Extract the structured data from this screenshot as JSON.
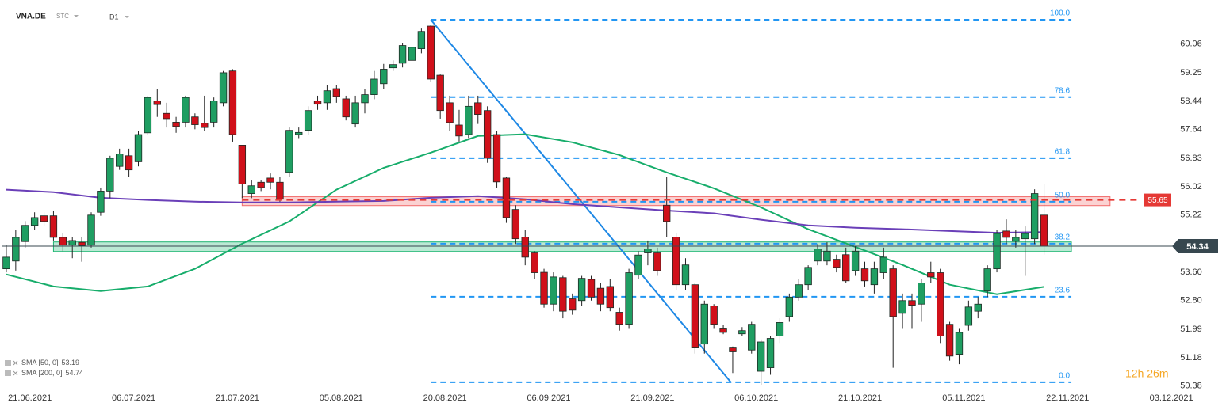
{
  "header": {
    "symbol": "VNA.DE",
    "kind": "STC",
    "timeframe": "D1"
  },
  "chart_data": {
    "type": "candlestick",
    "open": [
      53.7,
      53.92,
      54.47,
      54.93,
      55.2,
      55.2,
      54.59,
      54.37,
      54.45,
      54.37,
      55.3,
      55.9,
      56.6,
      56.9,
      56.73,
      57.55,
      58.45,
      58.1,
      57.85,
      57.85,
      58.0,
      57.82,
      57.85,
      58.4,
      59.3,
      57.2,
      55.83,
      56.15,
      56.27,
      56.15,
      56.43,
      57.5,
      57.62,
      58.45,
      58.4,
      58.8,
      58.51,
      57.8,
      58.4,
      58.63,
      58.94,
      59.39,
      59.52,
      59.6,
      59.93,
      60.57,
      59.18,
      58.4,
      57.77,
      57.5,
      58.4,
      58.18,
      57.5,
      56.27,
      55.38,
      54.6,
      54.15,
      53.6,
      52.7,
      53.45,
      52.85,
      52.8,
      53.4,
      53.15,
      53.2,
      52.47,
      52.13,
      53.52,
      54.15,
      54.15,
      55.5,
      54.6,
      53.25,
      53.25,
      51.57,
      52.65,
      52.0,
      51.46,
      51.86,
      51.4,
      50.8,
      50.9,
      51.8,
      52.35,
      52.9,
      53.25,
      53.92,
      53.92,
      53.97,
      54.1,
      53.65,
      53.7,
      53.25,
      53.59,
      53.7,
      52.44,
      52.8,
      52.7,
      53.59,
      53.59,
      52.13,
      51.28,
      52.1,
      52.5,
      53.07,
      53.7,
      54.77,
      54.48,
      54.55,
      54.55,
      55.22
    ],
    "high": [
      54.37,
      54.8,
      55.05,
      55.3,
      55.3,
      55.35,
      54.7,
      54.6,
      54.6,
      55.3,
      56.0,
      56.9,
      57.1,
      57.1,
      57.6,
      58.6,
      58.8,
      58.4,
      58.0,
      58.6,
      58.1,
      58.6,
      58.55,
      59.3,
      59.35,
      57.2,
      56.2,
      56.2,
      56.4,
      56.3,
      57.7,
      57.7,
      58.3,
      58.6,
      58.9,
      58.9,
      58.6,
      58.6,
      58.8,
      59.3,
      59.5,
      59.6,
      60.1,
      60.0,
      60.5,
      60.6,
      59.2,
      58.6,
      58.2,
      58.6,
      58.6,
      58.3,
      57.6,
      56.3,
      55.5,
      54.8,
      54.2,
      53.7,
      53.6,
      53.5,
      53.0,
      53.5,
      53.5,
      53.3,
      53.4,
      52.6,
      53.7,
      54.2,
      54.5,
      54.3,
      56.3,
      54.7,
      54.0,
      53.3,
      52.8,
      52.7,
      52.1,
      51.5,
      52.05,
      52.2,
      51.7,
      51.8,
      52.3,
      53.0,
      53.4,
      53.8,
      54.4,
      54.45,
      54.1,
      54.3,
      54.35,
      53.9,
      53.9,
      54.3,
      53.8,
      53.0,
      53.0,
      53.4,
      53.9,
      53.7,
      52.2,
      52.0,
      52.8,
      52.9,
      53.8,
      54.8,
      55.1,
      54.8,
      54.9,
      55.95,
      56.1
    ],
    "low": [
      53.6,
      53.65,
      54.3,
      54.8,
      54.9,
      54.5,
      54.2,
      54.0,
      53.9,
      54.3,
      55.2,
      55.7,
      56.5,
      56.3,
      56.6,
      57.5,
      58.0,
      57.7,
      57.55,
      57.7,
      57.65,
      57.6,
      57.7,
      58.3,
      57.3,
      55.7,
      55.7,
      55.9,
      55.95,
      55.6,
      56.3,
      57.4,
      57.5,
      58.2,
      58.2,
      58.4,
      57.9,
      57.7,
      58.1,
      58.5,
      58.8,
      59.3,
      59.4,
      59.3,
      59.8,
      59.0,
      57.95,
      57.6,
      57.3,
      57.4,
      57.8,
      56.7,
      56.0,
      55.0,
      54.4,
      53.8,
      53.4,
      52.6,
      52.5,
      52.3,
      52.4,
      52.65,
      52.8,
      52.5,
      52.5,
      51.95,
      52.0,
      53.4,
      53.8,
      53.5,
      54.6,
      53.1,
      53.1,
      51.3,
      51.3,
      52.0,
      51.85,
      50.75,
      51.8,
      51.3,
      50.4,
      50.7,
      51.6,
      52.2,
      52.8,
      53.1,
      53.8,
      53.8,
      53.6,
      53.3,
      53.5,
      53.2,
      53.0,
      53.4,
      50.9,
      52.0,
      52.0,
      52.2,
      53.3,
      51.6,
      51.1,
      51.0,
      51.95,
      52.3,
      52.9,
      53.6,
      54.4,
      54.3,
      53.5,
      54.4,
      54.1
    ],
    "close": [
      54.03,
      54.59,
      54.93,
      55.15,
      55.04,
      54.59,
      54.37,
      54.5,
      54.36,
      55.22,
      55.9,
      56.83,
      56.95,
      56.5,
      57.5,
      58.55,
      58.35,
      57.95,
      57.73,
      58.55,
      57.78,
      57.7,
      58.45,
      59.25,
      57.5,
      56.1,
      56.05,
      56.0,
      56.15,
      55.67,
      57.62,
      57.56,
      58.18,
      58.36,
      58.74,
      58.58,
      58.0,
      58.4,
      58.63,
      59.07,
      59.35,
      59.48,
      60.02,
      59.97,
      60.42,
      59.07,
      58.18,
      57.84,
      57.46,
      58.3,
      58.07,
      56.83,
      56.16,
      55.15,
      54.55,
      54.03,
      53.59,
      52.7,
      53.47,
      52.5,
      52.53,
      53.43,
      52.9,
      52.7,
      52.6,
      52.13,
      53.59,
      54.09,
      54.26,
      53.65,
      55.04,
      53.25,
      53.81,
      51.46,
      52.7,
      52.13,
      51.9,
      51.35,
      51.95,
      52.13,
      51.63,
      51.73,
      52.18,
      52.9,
      53.25,
      53.74,
      54.26,
      54.2,
      53.74,
      53.36,
      54.2,
      53.36,
      53.7,
      54.03,
      52.35,
      52.8,
      52.67,
      53.3,
      53.47,
      51.8,
      51.23,
      51.9,
      52.62,
      52.7,
      53.7,
      54.7,
      54.59,
      54.59,
      54.7,
      55.83,
      54.34
    ],
    "up_color": "#1f9e62",
    "down_color": "#d0101a",
    "series": [
      {
        "name": "SMA [50, 0]",
        "legend_value": 53.19,
        "color": "#17ad6b",
        "x": [
          0,
          5,
          10,
          15,
          20,
          25,
          30,
          35,
          40,
          45,
          50,
          55,
          60,
          65,
          70,
          75,
          80,
          85,
          90,
          95,
          100,
          105,
          110
        ],
        "values": [
          53.54,
          53.2,
          53.07,
          53.2,
          53.7,
          54.41,
          55.04,
          55.94,
          56.56,
          56.99,
          57.46,
          57.51,
          57.28,
          56.92,
          56.43,
          55.98,
          55.44,
          54.82,
          54.32,
          53.81,
          53.25,
          52.98,
          53.19
        ]
      },
      {
        "name": "SMA [200, 0]",
        "legend_value": 54.74,
        "color": "#6a3fb8",
        "x": [
          0,
          5,
          10,
          15,
          20,
          25,
          30,
          35,
          40,
          45,
          50,
          55,
          60,
          65,
          70,
          75,
          80,
          85,
          90,
          95,
          100,
          105,
          110
        ],
        "values": [
          55.94,
          55.87,
          55.71,
          55.65,
          55.6,
          55.58,
          55.58,
          55.6,
          55.62,
          55.71,
          55.76,
          55.67,
          55.53,
          55.44,
          55.35,
          55.27,
          55.09,
          54.93,
          54.86,
          54.82,
          54.77,
          54.72,
          54.74
        ]
      }
    ],
    "fib": {
      "color": "#2196f3",
      "x": [
        45,
        112.9
      ],
      "levels": [
        {
          "label": "100.0",
          "value": 60.75
        },
        {
          "label": "78.6",
          "value": 58.56
        },
        {
          "label": "61.8",
          "value": 56.83
        },
        {
          "label": "50.0",
          "value": 55.6
        },
        {
          "label": "38.2",
          "value": 54.41
        },
        {
          "label": "23.6",
          "value": 52.91
        },
        {
          "label": "0.0",
          "value": 50.49
        }
      ]
    },
    "zones": [
      {
        "color": "#f26b6b",
        "range": [
          55.49,
          55.74
        ],
        "x": [
          25,
          117
        ]
      },
      {
        "color": "#1fb572",
        "range": [
          54.19,
          54.46
        ],
        "x": [
          5,
          112.9
        ]
      }
    ],
    "trend_line": {
      "color": "#1e88e5",
      "x": [
        45,
        76.8
      ],
      "values": [
        60.75,
        50.49
      ]
    },
    "price_lines": [
      {
        "value": 55.65,
        "color": "#e53935",
        "x": [
          25,
          120
        ]
      },
      {
        "value": 54.34,
        "color": "#37474f",
        "x": [
          -0.5,
          123.6
        ]
      }
    ],
    "countdown": "12h 26m",
    "xlim": [
      -0.5,
      122.9
    ],
    "ylim": [
      50.33,
      61.31
    ],
    "xticks": [
      {
        "value": 2.5,
        "label": "21.06.2021"
      },
      {
        "value": 13.5,
        "label": "06.07.2021"
      },
      {
        "value": 24.5,
        "label": "21.07.2021"
      },
      {
        "value": 35.5,
        "label": "05.08.2021"
      },
      {
        "value": 46.5,
        "label": "20.08.2021"
      },
      {
        "value": 57.5,
        "label": "06.09.2021"
      },
      {
        "value": 68.5,
        "label": "21.09.2021"
      },
      {
        "value": 79.5,
        "label": "06.10.2021"
      },
      {
        "value": 90.5,
        "label": "21.10.2021"
      },
      {
        "value": 101.5,
        "label": "05.11.2021"
      },
      {
        "value": 112.5,
        "label": "22.11.2021"
      },
      {
        "value": 123.5,
        "label": "03.12.2021"
      }
    ],
    "yticks": [
      60.06,
      59.25,
      58.44,
      57.64,
      56.83,
      56.02,
      55.22,
      {
        "value": 53.6,
        "label": "53.60"
      },
      {
        "value": 52.8,
        "label": "52.80"
      },
      51.99,
      51.18,
      50.38
    ],
    "grid": false
  }
}
